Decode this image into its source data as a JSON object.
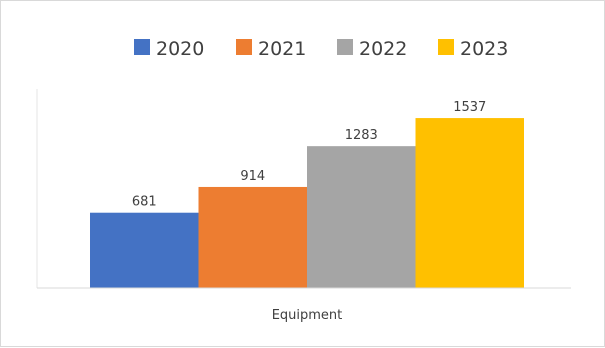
{
  "chart_data": {
    "type": "bar",
    "categories": [
      "Equipment"
    ],
    "series": [
      {
        "name": "2020",
        "values": [
          681
        ],
        "color": "#4472c4"
      },
      {
        "name": "2021",
        "values": [
          914
        ],
        "color": "#ed7d31"
      },
      {
        "name": "2022",
        "values": [
          1283
        ],
        "color": "#a5a5a5"
      },
      {
        "name": "2023",
        "values": [
          1537
        ],
        "color": "#ffc000"
      }
    ],
    "ylim": [
      0,
      1800
    ],
    "grid": false,
    "legend": "top",
    "data_labels": true
  }
}
